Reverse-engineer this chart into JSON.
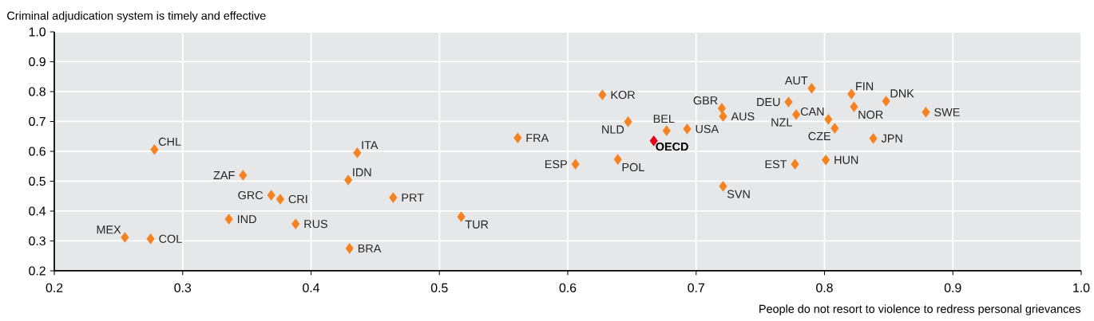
{
  "chart_data": {
    "type": "scatter",
    "xlabel": "People do not resort to violence to redress personal grievances",
    "ylabel": "Criminal adjudication system is timely and effective",
    "xlim": [
      0.2,
      1.0
    ],
    "ylim": [
      0.2,
      1.0
    ],
    "xticks": [
      0.2,
      0.3,
      0.4,
      0.5,
      0.6,
      0.7,
      0.8,
      0.9,
      {
        "value": 1.0,
        "label": "1.0"
      }
    ],
    "yticks": [
      0.2,
      0.3,
      0.4,
      0.5,
      0.6,
      0.7,
      0.8,
      0.9,
      {
        "value": 1.0,
        "label": "1.0"
      }
    ],
    "grid": true,
    "marker": "diamond",
    "series": [
      {
        "color": "#f58220",
        "x": [
          0.255,
          0.278,
          0.275,
          0.347,
          0.369,
          0.376,
          0.336,
          0.388,
          0.436,
          0.429,
          0.43,
          0.464,
          0.517,
          0.561,
          0.606,
          0.627,
          0.647,
          0.639,
          0.677,
          0.693,
          0.72,
          0.721,
          0.721,
          0.772,
          0.778,
          0.79,
          0.777,
          0.803,
          0.808,
          0.801,
          0.821,
          0.823,
          0.848,
          0.838,
          0.879
        ],
        "values": [
          0.312,
          0.606,
          0.307,
          0.52,
          0.453,
          0.44,
          0.373,
          0.357,
          0.595,
          0.504,
          0.275,
          0.445,
          0.381,
          0.645,
          0.557,
          0.789,
          0.699,
          0.573,
          0.669,
          0.675,
          0.744,
          0.717,
          0.483,
          0.765,
          0.723,
          0.811,
          0.557,
          0.707,
          0.677,
          0.571,
          0.792,
          0.749,
          0.768,
          0.643,
          0.731
        ]
      },
      {
        "name": "OECD",
        "color": "#e2001a",
        "x": [
          0.667
        ],
        "values": [
          0.635
        ]
      }
    ],
    "annotations": [
      {
        "text": "MEX",
        "x": 0.255,
        "y": 0.312
      },
      {
        "text": "CHL",
        "x": 0.278,
        "y": 0.606
      },
      {
        "text": "COL",
        "x": 0.275,
        "y": 0.307
      },
      {
        "text": "ZAF",
        "x": 0.347,
        "y": 0.52
      },
      {
        "text": "GRC",
        "x": 0.369,
        "y": 0.453
      },
      {
        "text": "CRI",
        "x": 0.376,
        "y": 0.44
      },
      {
        "text": "IND",
        "x": 0.336,
        "y": 0.373
      },
      {
        "text": "RUS",
        "x": 0.388,
        "y": 0.357
      },
      {
        "text": "ITA",
        "x": 0.436,
        "y": 0.595
      },
      {
        "text": "IDN",
        "x": 0.429,
        "y": 0.504
      },
      {
        "text": "BRA",
        "x": 0.43,
        "y": 0.275
      },
      {
        "text": "PRT",
        "x": 0.464,
        "y": 0.445
      },
      {
        "text": "TUR",
        "x": 0.517,
        "y": 0.381
      },
      {
        "text": "FRA",
        "x": 0.561,
        "y": 0.645
      },
      {
        "text": "ESP",
        "x": 0.606,
        "y": 0.557
      },
      {
        "text": "KOR",
        "x": 0.627,
        "y": 0.789
      },
      {
        "text": "NLD",
        "x": 0.647,
        "y": 0.699
      },
      {
        "text": "POL",
        "x": 0.639,
        "y": 0.573
      },
      {
        "text": "BEL",
        "x": 0.677,
        "y": 0.669
      },
      {
        "text": "USA",
        "x": 0.693,
        "y": 0.675
      },
      {
        "text": "GBR",
        "x": 0.72,
        "y": 0.744
      },
      {
        "text": "AUS",
        "x": 0.721,
        "y": 0.717
      },
      {
        "text": "SVN",
        "x": 0.721,
        "y": 0.483
      },
      {
        "text": "DEU",
        "x": 0.772,
        "y": 0.765
      },
      {
        "text": "NZL",
        "x": 0.778,
        "y": 0.723
      },
      {
        "text": "AUT",
        "x": 0.79,
        "y": 0.811
      },
      {
        "text": "EST",
        "x": 0.777,
        "y": 0.557
      },
      {
        "text": "CAN",
        "x": 0.803,
        "y": 0.707
      },
      {
        "text": "CZE",
        "x": 0.808,
        "y": 0.677
      },
      {
        "text": "HUN",
        "x": 0.801,
        "y": 0.571
      },
      {
        "text": "FIN",
        "x": 0.821,
        "y": 0.792
      },
      {
        "text": "NOR",
        "x": 0.823,
        "y": 0.749
      },
      {
        "text": "DNK",
        "x": 0.848,
        "y": 0.768
      },
      {
        "text": "JPN",
        "x": 0.838,
        "y": 0.643
      },
      {
        "text": "SWE",
        "x": 0.879,
        "y": 0.731
      }
    ]
  }
}
